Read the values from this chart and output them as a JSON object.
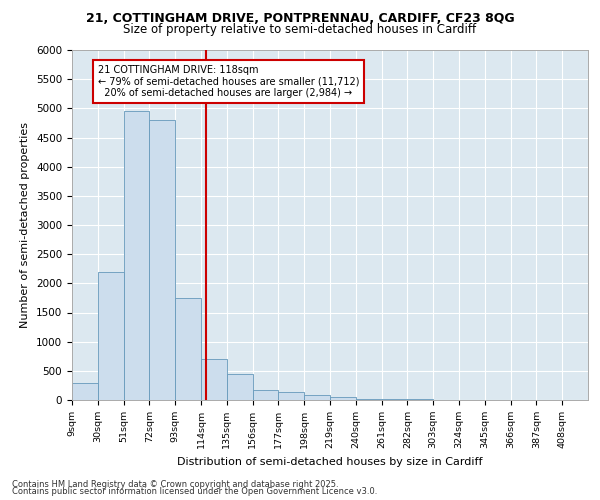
{
  "title_line1": "21, COTTINGHAM DRIVE, PONTPRENNAU, CARDIFF, CF23 8QG",
  "title_line2": "Size of property relative to semi-detached houses in Cardiff",
  "xlabel": "Distribution of semi-detached houses by size in Cardiff",
  "ylabel": "Number of semi-detached properties",
  "footer_line1": "Contains HM Land Registry data © Crown copyright and database right 2025.",
  "footer_line2": "Contains public sector information licensed under the Open Government Licence v3.0.",
  "property_size": 118,
  "property_label": "21 COTTINGHAM DRIVE: 118sqm",
  "pct_smaller": 79,
  "n_smaller": 11712,
  "pct_larger": 20,
  "n_larger": 2984,
  "bin_edges": [
    9,
    30,
    51,
    72,
    93,
    114,
    135,
    156,
    177,
    198,
    219,
    240,
    261,
    282,
    303,
    324,
    345,
    366,
    387,
    408,
    429
  ],
  "bar_heights": [
    300,
    2200,
    4950,
    4800,
    1750,
    700,
    450,
    180,
    130,
    90,
    50,
    25,
    18,
    12,
    8,
    6,
    4,
    3,
    2,
    1
  ],
  "bar_color": "#ccdded",
  "bar_edge_color": "#6699bb",
  "vline_color": "#cc0000",
  "vline_x": 118,
  "annotation_box_edge": "#cc0000",
  "background_color": "#dce8f0",
  "ylim": [
    0,
    6000
  ],
  "yticks": [
    0,
    500,
    1000,
    1500,
    2000,
    2500,
    3000,
    3500,
    4000,
    4500,
    5000,
    5500,
    6000
  ]
}
